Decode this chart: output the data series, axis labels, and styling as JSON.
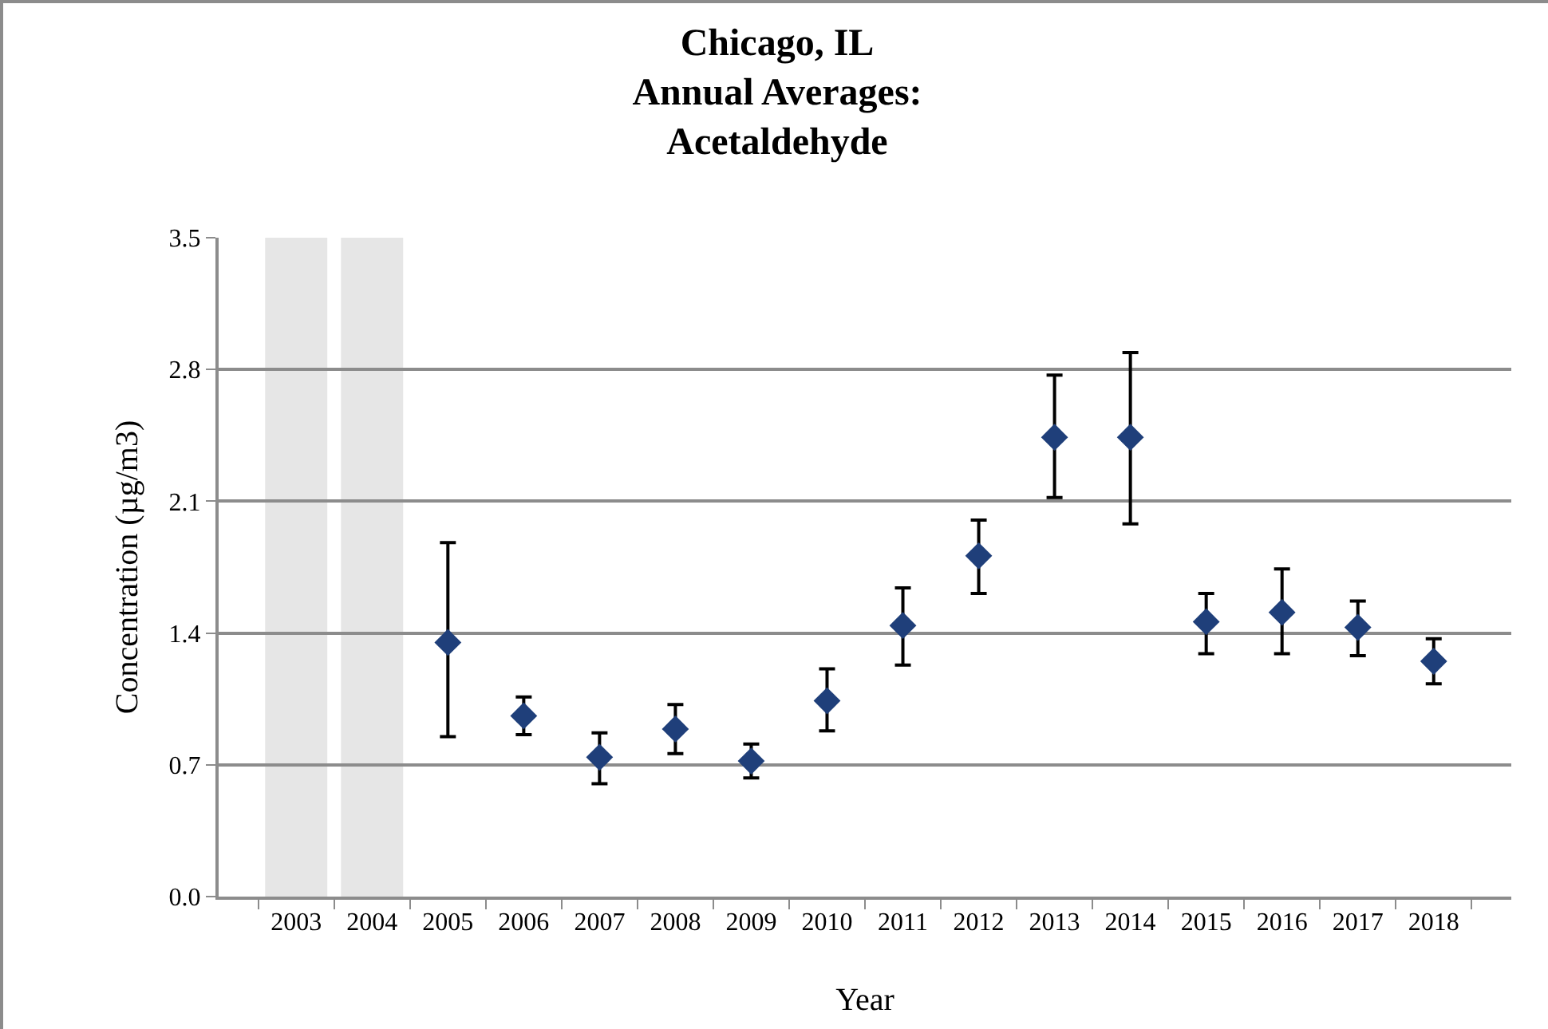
{
  "chart_data": {
    "type": "scatter",
    "title": "Chicago, IL\nAnnual Averages:\nAcetaldehyde",
    "xlabel": "Year",
    "ylabel": "Concentration (µg/m3)",
    "categories": [
      "2003",
      "2004",
      "2005",
      "2006",
      "2007",
      "2008",
      "2009",
      "2010",
      "2011",
      "2012",
      "2013",
      "2014",
      "2015",
      "2016",
      "2017",
      "2018"
    ],
    "series": [
      {
        "color": "#1f3f7a",
        "values": [
          null,
          null,
          1.35,
          0.96,
          0.74,
          0.89,
          0.72,
          1.04,
          1.44,
          1.81,
          2.44,
          2.44,
          1.46,
          1.51,
          1.43,
          1.25
        ],
        "errors": [
          null,
          null,
          [
            0.85,
            1.88
          ],
          [
            0.86,
            1.06
          ],
          [
            0.6,
            0.87
          ],
          [
            0.76,
            1.02
          ],
          [
            0.63,
            0.81
          ],
          [
            0.88,
            1.21
          ],
          [
            1.23,
            1.64
          ],
          [
            1.61,
            2.0
          ],
          [
            2.12,
            2.77
          ],
          [
            1.98,
            2.89
          ],
          [
            1.29,
            1.61
          ],
          [
            1.29,
            1.74
          ],
          [
            1.28,
            1.57
          ],
          [
            1.13,
            1.37
          ]
        ]
      }
    ],
    "bands": [
      {
        "axis": "x",
        "from": "2003",
        "to": "2003",
        "color": "#e6e6e6"
      },
      {
        "axis": "x",
        "from": "2004",
        "to": "2004",
        "color": "#e6e6e6"
      }
    ],
    "ylim": [
      0,
      3.5
    ],
    "yticks": [
      {
        "value": 0,
        "label": "0.0"
      },
      0.7,
      1.4,
      2.1,
      2.8,
      3.5
    ],
    "grid": "y",
    "marker": "diamond"
  }
}
